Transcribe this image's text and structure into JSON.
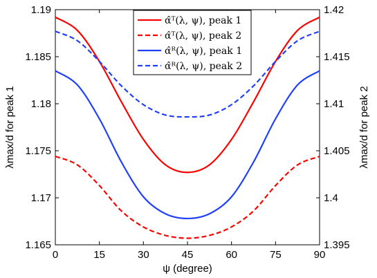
{
  "chart_data": {
    "type": "line",
    "xlabel": "ψ (degree)",
    "ylabel_left": "λmax/d for peak 1",
    "ylabel_right": "λmax/d for peak 2",
    "xlim": [
      0,
      90
    ],
    "ylim_left": [
      1.165,
      1.19
    ],
    "ylim_right": [
      1.395,
      1.42
    ],
    "x_ticks": [
      "0",
      "15",
      "30",
      "45",
      "60",
      "75",
      "90"
    ],
    "y_ticks_left": [
      "1.165",
      "1.17",
      "1.175",
      "1.18",
      "1.185",
      "1.19"
    ],
    "y_ticks_right": [
      "1.395",
      "1.4",
      "1.405",
      "1.41",
      "1.415",
      "1.42"
    ],
    "grid": false,
    "legend_position": "top-center",
    "x": [
      0,
      7.5,
      15,
      22.5,
      30,
      37.5,
      45,
      52.5,
      60,
      67.5,
      75,
      82.5,
      90
    ],
    "series": [
      {
        "name": "α̂ᵀ(λ, ψ), peak 1",
        "axis": "left",
        "color": "#ff0000",
        "dash": "solid",
        "values": [
          1.1892,
          1.1878,
          1.1845,
          1.1802,
          1.1762,
          1.1735,
          1.1727,
          1.1735,
          1.1762,
          1.1802,
          1.1845,
          1.1878,
          1.1892
        ]
      },
      {
        "name": "α̂ᵀ(λ, ψ), peak 2",
        "axis": "right",
        "color": "#ff0000",
        "dash": "dashed",
        "values": [
          1.4044,
          1.4035,
          1.4013,
          1.3986,
          1.3969,
          1.396,
          1.3957,
          1.396,
          1.3969,
          1.3986,
          1.4013,
          1.4035,
          1.4044
        ]
      },
      {
        "name": "α̂ᴿ(λ, ψ), peak 1",
        "axis": "left",
        "color": "#1f3fff",
        "dash": "solid",
        "values": [
          1.1835,
          1.182,
          1.1784,
          1.1738,
          1.1701,
          1.1683,
          1.1678,
          1.1683,
          1.1701,
          1.1738,
          1.1784,
          1.182,
          1.1835
        ]
      },
      {
        "name": "α̂ᴿ(λ, ψ), peak 2",
        "axis": "right",
        "color": "#1f3fff",
        "dash": "dashed",
        "values": [
          1.4177,
          1.4167,
          1.4145,
          1.4119,
          1.4099,
          1.4088,
          1.4086,
          1.4088,
          1.4099,
          1.4119,
          1.4145,
          1.4167,
          1.4177
        ]
      }
    ]
  }
}
